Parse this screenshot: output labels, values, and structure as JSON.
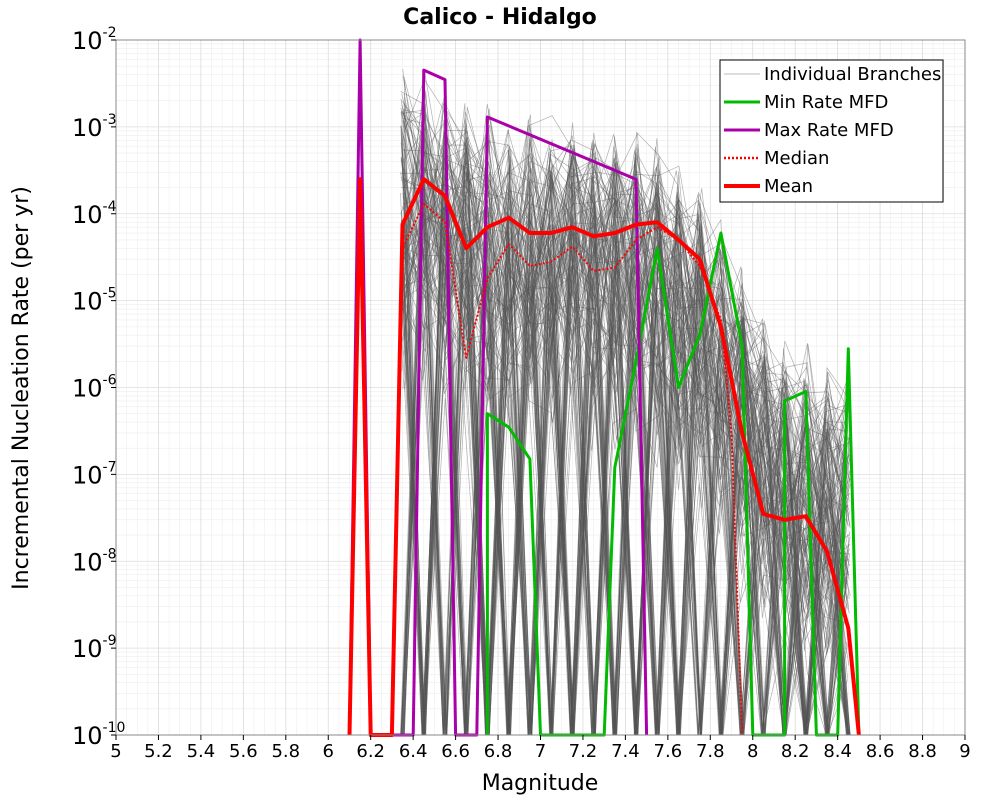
{
  "chart_data": {
    "type": "line",
    "title": "Calico - Hidalgo",
    "xlabel": "Magnitude",
    "ylabel": "Incremental Nucleation Rate (per yr)",
    "xlim": [
      5,
      9
    ],
    "ylim": [
      1e-10,
      0.01
    ],
    "yscale": "log",
    "grid": true,
    "legend_position": "top-right",
    "xticks": [
      "5",
      "5.2",
      "5.4",
      "5.6",
      "5.8",
      "6",
      "6.2",
      "6.4",
      "6.6",
      "6.8",
      "7",
      "7.2",
      "7.4",
      "7.6",
      "7.8",
      "8",
      "8.2",
      "8.4",
      "8.6",
      "8.8",
      "9"
    ],
    "yticks": [
      {
        "base": "10",
        "exp": "-10",
        "value": 1e-10
      },
      {
        "base": "10",
        "exp": "-9",
        "value": 1e-09
      },
      {
        "base": "10",
        "exp": "-8",
        "value": 1e-08
      },
      {
        "base": "10",
        "exp": "-7",
        "value": 1e-07
      },
      {
        "base": "10",
        "exp": "-6",
        "value": 1e-06
      },
      {
        "base": "10",
        "exp": "-5",
        "value": 1e-05
      },
      {
        "base": "10",
        "exp": "-4",
        "value": 0.0001
      },
      {
        "base": "10",
        "exp": "-3",
        "value": 0.001
      },
      {
        "base": "10",
        "exp": "-2",
        "value": 0.01
      }
    ],
    "branch_envelope": {
      "name": "Individual Branches",
      "color": "#555555",
      "x": [
        6.35,
        6.45,
        6.55,
        6.65,
        6.75,
        6.85,
        6.95,
        7.05,
        7.15,
        7.25,
        7.35,
        7.45,
        7.55,
        7.65,
        7.75,
        7.85,
        7.95,
        8.05,
        8.15,
        8.25,
        8.35,
        8.45
      ],
      "upper": [
        0.006,
        0.005,
        0.004,
        0.0025,
        0.002,
        0.0018,
        0.0016,
        0.0015,
        0.0014,
        0.0013,
        0.0012,
        0.0011,
        0.0009,
        0.0004,
        0.00025,
        0.00012,
        3e-05,
        8e-06,
        5e-06,
        4e-06,
        3e-06,
        2e-06
      ]
    },
    "series": [
      {
        "name": "Min Rate MFD",
        "color": "#00bb00",
        "style": "solid",
        "points": [
          [
            6.75,
            1e-10
          ],
          [
            6.75,
            5e-07
          ],
          [
            6.85,
            3.5e-07
          ],
          [
            6.95,
            1.5e-07
          ],
          [
            7.0,
            1e-10
          ],
          [
            7.3,
            1e-10
          ],
          [
            7.35,
            1.2e-07
          ],
          [
            7.45,
            2e-06
          ],
          [
            7.55,
            4e-05
          ],
          [
            7.65,
            1e-06
          ],
          [
            7.75,
            4e-06
          ],
          [
            7.85,
            6e-05
          ],
          [
            7.95,
            3e-06
          ],
          [
            8.0,
            1e-10
          ],
          [
            8.15,
            1e-10
          ],
          [
            8.15,
            7e-07
          ],
          [
            8.25,
            9e-07
          ],
          [
            8.3,
            1e-10
          ],
          [
            8.4,
            1e-10
          ],
          [
            8.45,
            2.8e-06
          ],
          [
            8.5,
            1e-10
          ]
        ]
      },
      {
        "name": "Max Rate MFD",
        "color": "#aa00aa",
        "style": "solid",
        "points": [
          [
            6.1,
            1e-10
          ],
          [
            6.15,
            0.01
          ],
          [
            6.2,
            1e-10
          ],
          [
            6.4,
            1e-10
          ],
          [
            6.45,
            0.0045
          ],
          [
            6.55,
            0.0035
          ],
          [
            6.6,
            1e-10
          ],
          [
            6.7,
            1e-10
          ],
          [
            6.75,
            0.0013
          ],
          [
            7.45,
            0.00025
          ],
          [
            7.5,
            1e-10
          ]
        ]
      },
      {
        "name": "Median",
        "color": "#ff0000",
        "style": "dotted",
        "points": [
          [
            6.1,
            1e-10
          ],
          [
            6.15,
            0.0002
          ],
          [
            6.2,
            1e-10
          ],
          [
            6.3,
            1e-10
          ],
          [
            6.35,
            4e-05
          ],
          [
            6.45,
            0.00013
          ],
          [
            6.55,
            8e-05
          ],
          [
            6.65,
            2.2e-06
          ],
          [
            6.75,
            1.8e-05
          ],
          [
            6.85,
            4.5e-05
          ],
          [
            6.95,
            2.5e-05
          ],
          [
            7.05,
            2.8e-05
          ],
          [
            7.15,
            4.2e-05
          ],
          [
            7.25,
            2.2e-05
          ],
          [
            7.35,
            2.4e-05
          ],
          [
            7.45,
            5e-05
          ],
          [
            7.55,
            7e-05
          ],
          [
            7.65,
            5e-05
          ],
          [
            7.75,
            2.5e-05
          ],
          [
            7.85,
            6e-06
          ],
          [
            7.9,
            3e-07
          ],
          [
            7.95,
            1e-10
          ]
        ]
      },
      {
        "name": "Mean",
        "color": "#ff0000",
        "style": "solid",
        "points": [
          [
            6.1,
            1e-10
          ],
          [
            6.15,
            0.00025
          ],
          [
            6.2,
            1e-10
          ],
          [
            6.3,
            1e-10
          ],
          [
            6.35,
            7.5e-05
          ],
          [
            6.45,
            0.00025
          ],
          [
            6.55,
            0.00016
          ],
          [
            6.65,
            4e-05
          ],
          [
            6.75,
            7e-05
          ],
          [
            6.85,
            9e-05
          ],
          [
            6.95,
            6e-05
          ],
          [
            7.05,
            6e-05
          ],
          [
            7.15,
            7e-05
          ],
          [
            7.25,
            5.5e-05
          ],
          [
            7.35,
            6e-05
          ],
          [
            7.45,
            7.5e-05
          ],
          [
            7.55,
            8e-05
          ],
          [
            7.65,
            5e-05
          ],
          [
            7.75,
            3e-05
          ],
          [
            7.85,
            5e-06
          ],
          [
            7.95,
            3e-07
          ],
          [
            8.05,
            3.5e-08
          ],
          [
            8.15,
            3e-08
          ],
          [
            8.25,
            3.3e-08
          ],
          [
            8.35,
            1.3e-08
          ],
          [
            8.45,
            1.7e-09
          ],
          [
            8.5,
            1e-10
          ]
        ]
      }
    ],
    "legend": [
      {
        "label": "Individual Branches",
        "color": "#bbbbbb",
        "style": "solid"
      },
      {
        "label": "Min Rate MFD",
        "color": "#00bb00",
        "style": "solid"
      },
      {
        "label": "Max Rate MFD",
        "color": "#aa00aa",
        "style": "solid"
      },
      {
        "label": "Median",
        "color": "#ff0000",
        "style": "dotted"
      },
      {
        "label": "Mean",
        "color": "#ff0000",
        "style": "solid"
      }
    ]
  }
}
